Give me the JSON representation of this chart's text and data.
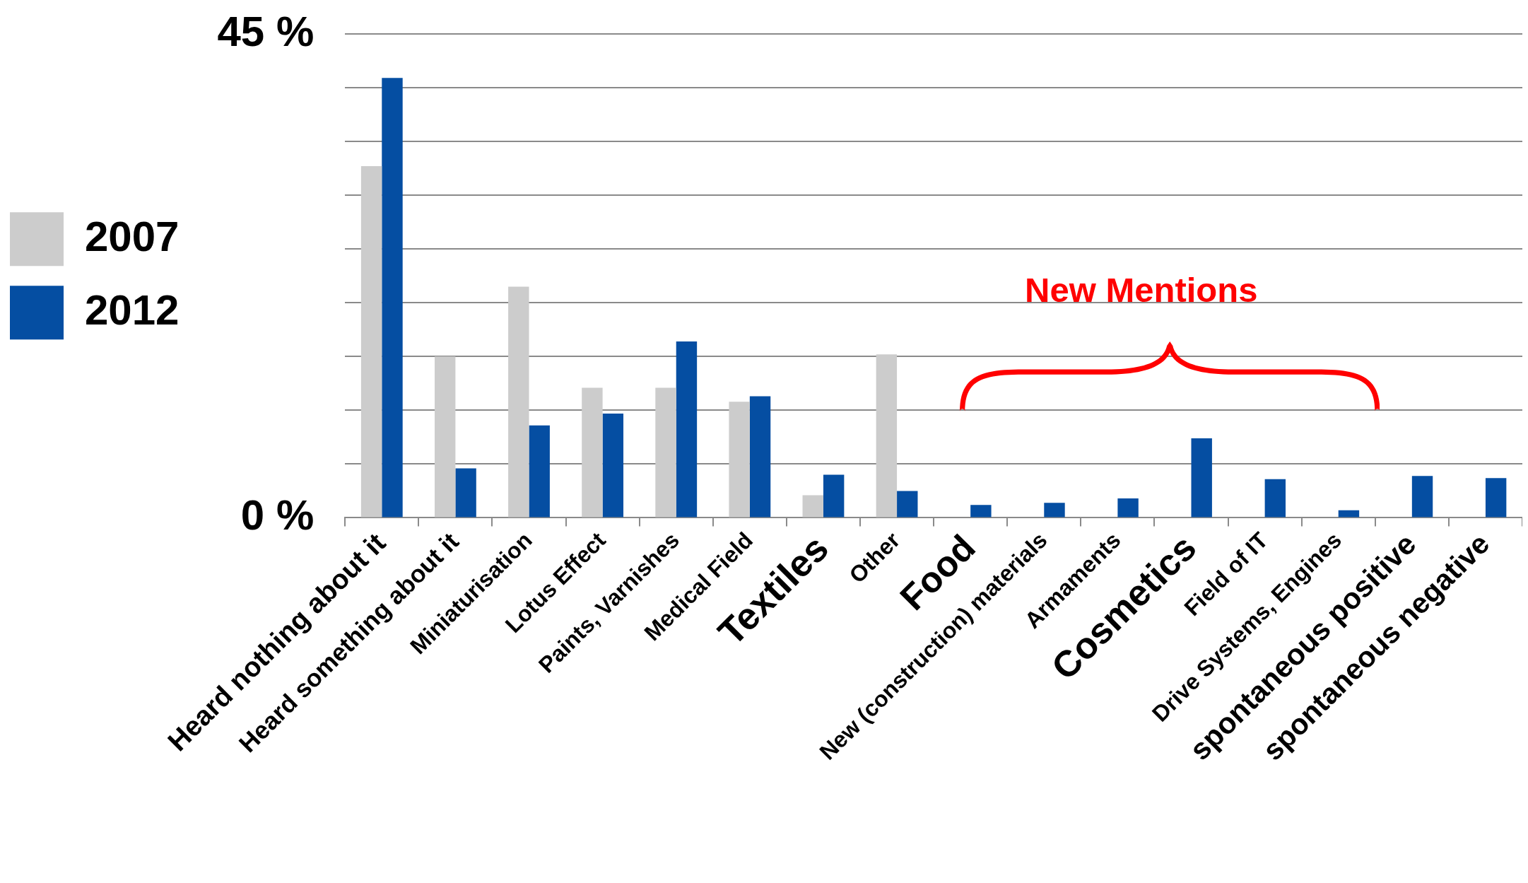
{
  "chart_data": {
    "type": "bar",
    "categories": [
      "Heard nothing about it",
      "Heard something about it",
      "Miniaturisation",
      "Lotus Effect",
      "Paints, Varnishes",
      "Medical Field",
      "Textiles",
      "Other",
      "Food",
      "New (construction) materials",
      "Armaments",
      "Cosmetics",
      "Field of IT",
      "Drive Systems, Engines",
      "spontaneous positive",
      "spontaneous negative"
    ],
    "series": [
      {
        "name": "2007",
        "color": "#cccccc",
        "values": [
          32.7,
          15.0,
          21.5,
          12.1,
          12.1,
          10.8,
          2.1,
          15.2,
          null,
          null,
          null,
          null,
          null,
          null,
          null,
          null
        ]
      },
      {
        "name": "2012",
        "color": "#054ea2",
        "values": [
          40.9,
          4.6,
          8.6,
          9.7,
          16.4,
          11.3,
          4.0,
          2.5,
          1.2,
          1.4,
          1.8,
          7.4,
          3.6,
          0.7,
          3.9,
          3.7
        ]
      }
    ],
    "ylim": [
      0,
      45
    ],
    "yticks": [
      {
        "value": 0,
        "label": "0 %"
      },
      {
        "value": 5,
        "label": null
      },
      {
        "value": 10,
        "label": null
      },
      {
        "value": 15,
        "label": null
      },
      {
        "value": 20,
        "label": null
      },
      {
        "value": 25,
        "label": null
      },
      {
        "value": 30,
        "label": null
      },
      {
        "value": 35,
        "label": null
      },
      {
        "value": 40,
        "label": null
      },
      {
        "value": 45,
        "label": "45 %"
      }
    ],
    "grid": "y",
    "legend": "left",
    "annotations": [
      "New Mentions"
    ]
  }
}
